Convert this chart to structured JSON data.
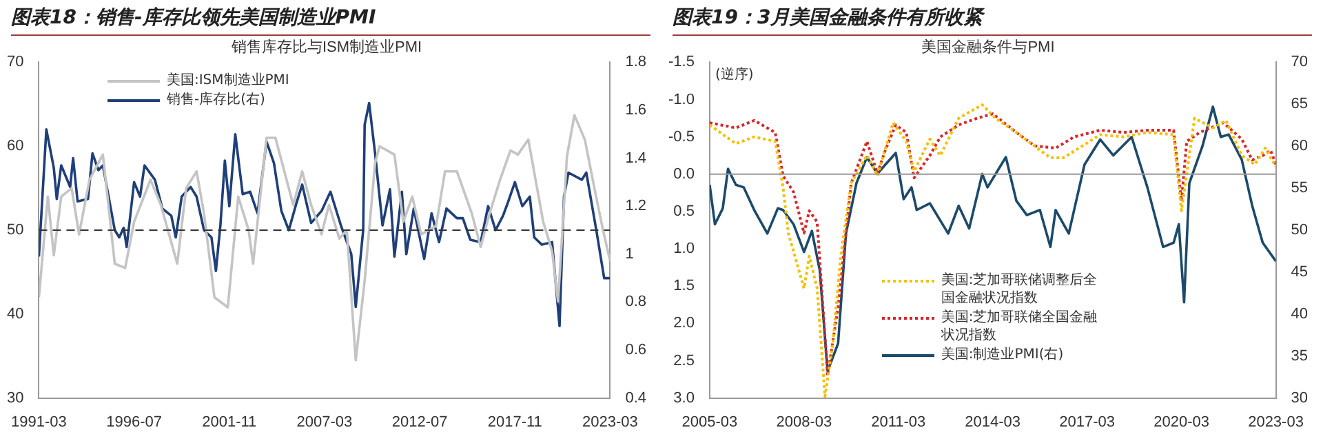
{
  "chart_data": [
    {
      "type": "line",
      "title": "图表18：销售-库存比领先美国制造业PMI",
      "subtitle": "销售库存比与ISM制造业PMI",
      "xlim": [
        "1991-03",
        "2023-03"
      ],
      "xticks": [
        "1991-03",
        "1996-07",
        "2001-11",
        "2007-03",
        "2012-07",
        "2017-11",
        "2023-03"
      ],
      "ylim": [
        30,
        70
      ],
      "yticks": [
        30,
        40,
        50,
        60,
        70
      ],
      "y2lim": [
        0.4,
        1.8
      ],
      "y2ticks": [
        0.4,
        0.6,
        0.8,
        1,
        1.2,
        1.4,
        1.6,
        1.8
      ],
      "grid": false,
      "legend": "top left",
      "marker": "none",
      "ref_lines": [
        {
          "axis": "y",
          "value": 50,
          "color": "#333333",
          "line_style": "dashed"
        }
      ],
      "series": [
        {
          "name": "美国:ISM制造业PMI",
          "color": "#c4c4c4",
          "line_style": "solid",
          "x": [
            "1991-03",
            "1991-09",
            "1992-01",
            "1992-06",
            "1993-01",
            "1993-06",
            "1994-01",
            "1994-10",
            "1995-06",
            "1996-01",
            "1996-07",
            "1997-06",
            "1998-01",
            "1998-12",
            "1999-06",
            "2000-01",
            "2000-06",
            "2001-01",
            "2001-10",
            "2002-05",
            "2002-12",
            "2003-03",
            "2003-12",
            "2004-06",
            "2005-06",
            "2005-12",
            "2006-06",
            "2007-01",
            "2007-06",
            "2008-01",
            "2008-06",
            "2008-12",
            "2009-06",
            "2010-01",
            "2010-04",
            "2011-02",
            "2011-08",
            "2012-02",
            "2012-08",
            "2013-06",
            "2013-12",
            "2014-08",
            "2015-06",
            "2015-12",
            "2016-06",
            "2017-01",
            "2017-08",
            "2018-01",
            "2018-08",
            "2019-06",
            "2019-12",
            "2020-04",
            "2020-10",
            "2021-03",
            "2021-10",
            "2022-04",
            "2022-10",
            "2023-03"
          ],
          "values": [
            42,
            54,
            47,
            54,
            55,
            49.5,
            56,
            59,
            46,
            45.5,
            51,
            56,
            53,
            46,
            55,
            57,
            52,
            42,
            40.8,
            54,
            50,
            46,
            61,
            61,
            53,
            57,
            53,
            49.5,
            53,
            49,
            50,
            34.5,
            44,
            58,
            60,
            59,
            51,
            54,
            49.5,
            50.5,
            57,
            57,
            52,
            48,
            52,
            56,
            59.5,
            59,
            60.8,
            51,
            47.5,
            41.5,
            58.8,
            63.7,
            60.8,
            55.4,
            50.2,
            46.3
          ]
        },
        {
          "name": "销售-库存比(右)",
          "color": "#1f3f7a",
          "axis": "y2",
          "line_style": "solid",
          "x": [
            "1991-03",
            "1991-08",
            "1992-01",
            "1992-03",
            "1992-06",
            "1992-12",
            "1993-02",
            "1993-05",
            "1993-12",
            "1994-03",
            "1994-07",
            "1994-10",
            "1995-06",
            "1995-09",
            "1995-12",
            "1996-02",
            "1996-07",
            "1996-11",
            "1997-02",
            "1997-09",
            "1998-02",
            "1998-08",
            "1998-11",
            "1999-03",
            "1999-09",
            "2000-01",
            "2000-06",
            "2000-11",
            "2001-02",
            "2001-05",
            "2001-08",
            "2001-11",
            "2002-03",
            "2002-08",
            "2003-01",
            "2003-06",
            "2003-12",
            "2004-05",
            "2004-10",
            "2005-03",
            "2005-08",
            "2005-12",
            "2006-06",
            "2007-01",
            "2007-07",
            "2008-02",
            "2008-09",
            "2008-12",
            "2009-05",
            "2009-06",
            "2009-09",
            "2010-01",
            "2010-06",
            "2010-11",
            "2011-02",
            "2011-07",
            "2011-10",
            "2012-03",
            "2012-10",
            "2013-03",
            "2013-08",
            "2014-01",
            "2014-08",
            "2014-12",
            "2015-05",
            "2015-12",
            "2016-05",
            "2016-10",
            "2017-03",
            "2017-06",
            "2017-11",
            "2018-04",
            "2018-09",
            "2018-12",
            "2019-05",
            "2019-12",
            "2020-05",
            "2020-08",
            "2020-11",
            "2021-08",
            "2021-11",
            "2022-06",
            "2022-11",
            "2023-03"
          ],
          "values": [
            0.99,
            1.52,
            1.36,
            1.23,
            1.37,
            1.28,
            1.4,
            1.22,
            1.23,
            1.42,
            1.35,
            1.37,
            1.1,
            1.07,
            1.11,
            1.03,
            1.3,
            1.24,
            1.37,
            1.31,
            1.19,
            1.16,
            1.07,
            1.24,
            1.28,
            1.24,
            1.1,
            1.07,
            0.93,
            1.12,
            1.39,
            1.2,
            1.5,
            1.25,
            1.26,
            1.17,
            1.47,
            1.38,
            1.18,
            1.1,
            1.21,
            1.29,
            1.13,
            1.18,
            1.26,
            1.12,
            1,
            0.78,
            1.1,
            1.54,
            1.63,
            1.42,
            1.12,
            1.27,
            0.99,
            1.26,
            1,
            1.19,
            0.98,
            1.17,
            1.05,
            1.19,
            1.15,
            1.15,
            1.06,
            1.05,
            1.2,
            1.1,
            1.16,
            1.21,
            1.3,
            1.2,
            1.24,
            1.07,
            1.04,
            1.05,
            0.7,
            1.24,
            1.34,
            1.31,
            1.34,
            1.09,
            0.9,
            0.9
          ]
        }
      ]
    },
    {
      "type": "line",
      "title": "图表19：3月美国金融条件有所收紧",
      "subtitle": "美国金融条件与PMI",
      "annotations": [
        "(逆序)"
      ],
      "xlim": [
        "2005-03",
        "2023-03"
      ],
      "xticks": [
        "2005-03",
        "2008-03",
        "2011-03",
        "2014-03",
        "2017-03",
        "2020-03",
        "2023-03"
      ],
      "ylim": [
        3.0,
        -1.5
      ],
      "yticks": [
        {
          "value": -1.5,
          "label": "-1.5"
        },
        {
          "value": -1,
          "label": "-1.0"
        },
        {
          "value": -0.5,
          "label": "-0.5"
        },
        {
          "value": 0,
          "label": "0.0"
        },
        {
          "value": 0.5,
          "label": "0.5"
        },
        {
          "value": 1,
          "label": "1.0"
        },
        {
          "value": 1.5,
          "label": "1.5"
        },
        {
          "value": 2,
          "label": "2.0"
        },
        {
          "value": 2.5,
          "label": "2.5"
        },
        {
          "value": 3,
          "label": "3.0"
        }
      ],
      "y2lim": [
        30,
        70
      ],
      "y2ticks": [
        30,
        35,
        40,
        45,
        50,
        55,
        60,
        65,
        70
      ],
      "grid": false,
      "legend": "bottom",
      "marker": "none",
      "ref_lines": [
        {
          "axis": "y",
          "value": 0,
          "color": "#999999",
          "line_style": "solid"
        }
      ],
      "series": [
        {
          "name": "美国:芝加哥联储调整后全国金融状况指数",
          "color": "#f5c000",
          "line_style": "dotted",
          "x": [
            "2005-03",
            "2006-01",
            "2006-08",
            "2007-04",
            "2007-07",
            "2007-09",
            "2007-12",
            "2008-03",
            "2008-05",
            "2008-08",
            "2008-11",
            "2009-02",
            "2009-05",
            "2009-09",
            "2010-03",
            "2010-07",
            "2011-01",
            "2011-06",
            "2011-09",
            "2012-03",
            "2012-07",
            "2013-02",
            "2013-11",
            "2014-04",
            "2014-12",
            "2016-01",
            "2016-06",
            "2017-08",
            "2018-05",
            "2019-02",
            "2019-12",
            "2020-03",
            "2020-08",
            "2021-03",
            "2021-08",
            "2022-02",
            "2022-07",
            "2022-11",
            "2023-03"
          ],
          "values": [
            -0.66,
            -0.41,
            -0.5,
            -0.44,
            0.18,
            0.79,
            1.16,
            1.53,
            1.1,
            1.53,
            2.98,
            2.27,
            1.1,
            0.12,
            -0.25,
            0.02,
            -0.69,
            -0.44,
            -0.04,
            -0.47,
            -0.25,
            -0.75,
            -0.93,
            -0.75,
            -0.56,
            -0.22,
            -0.22,
            -0.53,
            -0.5,
            -0.56,
            -0.53,
            0.49,
            -0.75,
            -0.62,
            -0.72,
            -0.25,
            -0.13,
            -0.35,
            -0.1
          ]
        },
        {
          "name": "美国:芝加哥联储全国金融状况指数",
          "color": "#d9262b",
          "line_style": "dotted",
          "x": [
            "2005-03",
            "2006-01",
            "2006-08",
            "2007-04",
            "2007-07",
            "2007-11",
            "2008-03",
            "2008-05",
            "2008-08",
            "2008-12",
            "2009-04",
            "2009-09",
            "2010-03",
            "2010-07",
            "2010-10",
            "2011-02",
            "2011-06",
            "2011-09",
            "2012-03",
            "2012-07",
            "2013-02",
            "2013-09",
            "2014-03",
            "2014-12",
            "2015-07",
            "2016-03",
            "2016-10",
            "2017-08",
            "2018-05",
            "2019-02",
            "2019-12",
            "2020-03",
            "2020-05",
            "2020-10",
            "2021-07",
            "2022-02",
            "2022-06",
            "2022-10",
            "2023-01",
            "2023-03"
          ],
          "values": [
            -0.69,
            -0.62,
            -0.72,
            -0.56,
            0.02,
            0.24,
            0.79,
            0.49,
            0.64,
            2.7,
            1.78,
            0.12,
            -0.44,
            -0.01,
            -0.32,
            -0.66,
            -0.56,
            0.05,
            -0.25,
            -0.5,
            -0.66,
            -0.75,
            -0.81,
            -0.56,
            -0.38,
            -0.35,
            -0.5,
            -0.59,
            -0.56,
            -0.59,
            -0.59,
            0.36,
            -0.44,
            -0.56,
            -0.69,
            -0.47,
            -0.19,
            -0.25,
            -0.32,
            -0.13
          ]
        },
        {
          "name": "美国:制造业PMI(右)",
          "color": "#1b4a6b",
          "axis": "y2",
          "line_style": "solid",
          "x": [
            "2005-03",
            "2005-05",
            "2005-08",
            "2005-10",
            "2006-01",
            "2006-04",
            "2006-08",
            "2007-01",
            "2007-05",
            "2007-07",
            "2007-11",
            "2008-03",
            "2008-06",
            "2008-09",
            "2008-12",
            "2009-04",
            "2009-07",
            "2009-11",
            "2010-03",
            "2010-07",
            "2010-10",
            "2011-02",
            "2011-05",
            "2011-08",
            "2011-10",
            "2012-03",
            "2012-10",
            "2013-02",
            "2013-06",
            "2013-11",
            "2014-01",
            "2014-08",
            "2014-12",
            "2015-04",
            "2015-09",
            "2016-01",
            "2016-03",
            "2016-08",
            "2017-02",
            "2017-08",
            "2018-01",
            "2018-08",
            "2019-02",
            "2019-08",
            "2019-12",
            "2020-02",
            "2020-04",
            "2020-06",
            "2020-11",
            "2021-03",
            "2021-06",
            "2021-09",
            "2022-02",
            "2022-06",
            "2022-10",
            "2023-03"
          ],
          "values": [
            55.4,
            50.7,
            52.6,
            57.3,
            55.4,
            55.1,
            52.4,
            49.6,
            52.6,
            52.4,
            50.7,
            47.4,
            49.9,
            45.2,
            33.2,
            36.5,
            49.6,
            55.6,
            58.7,
            56.7,
            57.8,
            59.2,
            53.7,
            55.1,
            52.4,
            53.2,
            49.6,
            52.9,
            50.2,
            56.7,
            55.1,
            58.7,
            53.5,
            51.8,
            52.4,
            48,
            52.4,
            49.6,
            57.8,
            60.8,
            58.9,
            61.1,
            55.1,
            48,
            48.5,
            50.7,
            41.4,
            55.6,
            60,
            64.7,
            61.1,
            61.4,
            58.4,
            52.9,
            48.5,
            46.3
          ]
        }
      ]
    }
  ]
}
